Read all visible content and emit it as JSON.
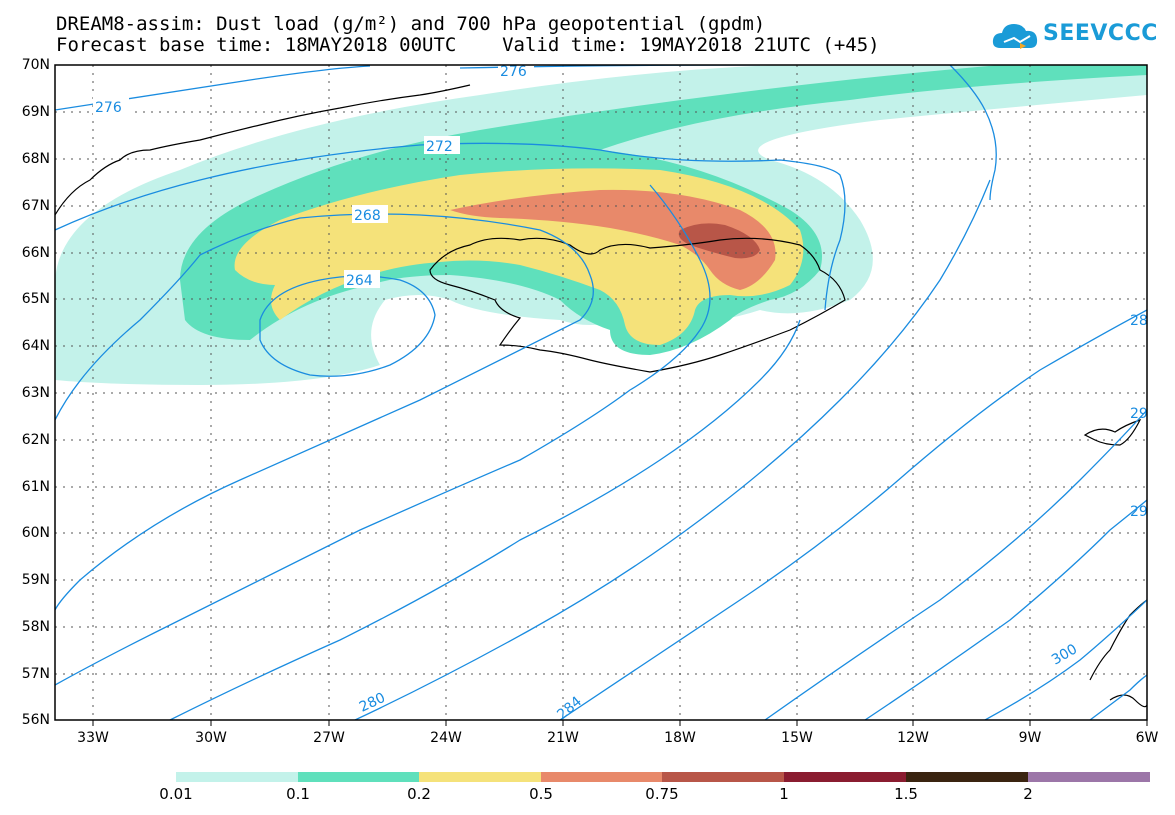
{
  "title": {
    "line1": "DREAM8-assim: Dust load (g/m²) and 700 hPa geopotential (gpdm)",
    "line2": "Forecast base time: 18MAY2018 00UTC    Valid time: 19MAY2018 21UTC (+45)"
  },
  "logo": {
    "text": "SEEVCCC",
    "icon": "cloud-logo-icon"
  },
  "axes": {
    "lat_labels": [
      "70N",
      "69N",
      "68N",
      "67N",
      "66N",
      "65N",
      "64N",
      "63N",
      "62N",
      "61N",
      "60N",
      "59N",
      "58N",
      "57N",
      "56N"
    ],
    "lon_labels": [
      "33W",
      "30W",
      "27W",
      "24W",
      "21W",
      "18W",
      "15W",
      "12W",
      "9W",
      "6W"
    ]
  },
  "contour_labels": [
    "276",
    "276",
    "272",
    "268",
    "264",
    "280",
    "284",
    "28",
    "29",
    "29",
    "300"
  ],
  "colorbar": {
    "labels": [
      "0.01",
      "0.1",
      "0.2",
      "0.5",
      "0.75",
      "1",
      "1.5",
      "2"
    ],
    "colors": [
      "#c3f2ea",
      "#5fe0bc",
      "#f5e27a",
      "#e8896a",
      "#b85648",
      "#8a1c30",
      "#3a2410",
      "#9c76a8"
    ]
  },
  "colors": {
    "contour": "#1a8ce0",
    "dust_0_01": "#c3f2ea",
    "dust_0_1": "#5fe0bc",
    "dust_0_2": "#f5e27a",
    "dust_0_5": "#e8896a",
    "dust_0_75": "#b85648"
  }
}
